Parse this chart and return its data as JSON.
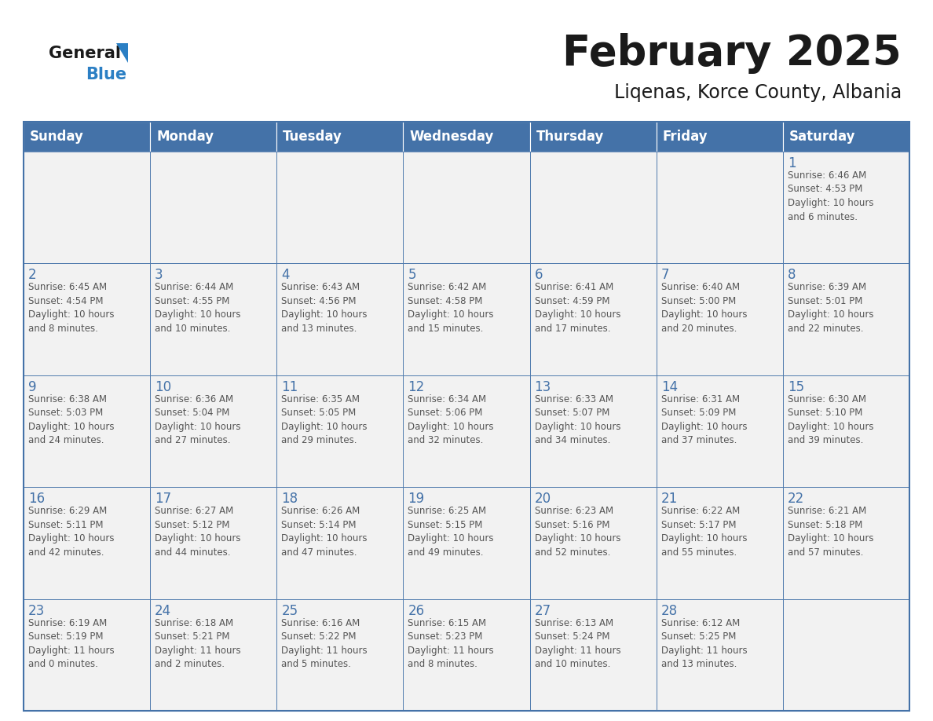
{
  "title": "February 2025",
  "subtitle": "Liqenas, Korce County, Albania",
  "header_color": "#4472a8",
  "header_text_color": "#ffffff",
  "cell_bg_color": "#f2f2f2",
  "border_color": "#4472a8",
  "title_color": "#1a1a1a",
  "subtitle_color": "#1a1a1a",
  "day_number_color": "#4472a8",
  "cell_text_color": "#555555",
  "logo_general_color": "#1a1a1a",
  "logo_blue_color": "#2b7fc4",
  "logo_triangle_color": "#2b7fc4",
  "days_of_week": [
    "Sunday",
    "Monday",
    "Tuesday",
    "Wednesday",
    "Thursday",
    "Friday",
    "Saturday"
  ],
  "weeks": [
    [
      {
        "day": null,
        "info": null
      },
      {
        "day": null,
        "info": null
      },
      {
        "day": null,
        "info": null
      },
      {
        "day": null,
        "info": null
      },
      {
        "day": null,
        "info": null
      },
      {
        "day": null,
        "info": null
      },
      {
        "day": "1",
        "info": "Sunrise: 6:46 AM\nSunset: 4:53 PM\nDaylight: 10 hours\nand 6 minutes."
      }
    ],
    [
      {
        "day": "2",
        "info": "Sunrise: 6:45 AM\nSunset: 4:54 PM\nDaylight: 10 hours\nand 8 minutes."
      },
      {
        "day": "3",
        "info": "Sunrise: 6:44 AM\nSunset: 4:55 PM\nDaylight: 10 hours\nand 10 minutes."
      },
      {
        "day": "4",
        "info": "Sunrise: 6:43 AM\nSunset: 4:56 PM\nDaylight: 10 hours\nand 13 minutes."
      },
      {
        "day": "5",
        "info": "Sunrise: 6:42 AM\nSunset: 4:58 PM\nDaylight: 10 hours\nand 15 minutes."
      },
      {
        "day": "6",
        "info": "Sunrise: 6:41 AM\nSunset: 4:59 PM\nDaylight: 10 hours\nand 17 minutes."
      },
      {
        "day": "7",
        "info": "Sunrise: 6:40 AM\nSunset: 5:00 PM\nDaylight: 10 hours\nand 20 minutes."
      },
      {
        "day": "8",
        "info": "Sunrise: 6:39 AM\nSunset: 5:01 PM\nDaylight: 10 hours\nand 22 minutes."
      }
    ],
    [
      {
        "day": "9",
        "info": "Sunrise: 6:38 AM\nSunset: 5:03 PM\nDaylight: 10 hours\nand 24 minutes."
      },
      {
        "day": "10",
        "info": "Sunrise: 6:36 AM\nSunset: 5:04 PM\nDaylight: 10 hours\nand 27 minutes."
      },
      {
        "day": "11",
        "info": "Sunrise: 6:35 AM\nSunset: 5:05 PM\nDaylight: 10 hours\nand 29 minutes."
      },
      {
        "day": "12",
        "info": "Sunrise: 6:34 AM\nSunset: 5:06 PM\nDaylight: 10 hours\nand 32 minutes."
      },
      {
        "day": "13",
        "info": "Sunrise: 6:33 AM\nSunset: 5:07 PM\nDaylight: 10 hours\nand 34 minutes."
      },
      {
        "day": "14",
        "info": "Sunrise: 6:31 AM\nSunset: 5:09 PM\nDaylight: 10 hours\nand 37 minutes."
      },
      {
        "day": "15",
        "info": "Sunrise: 6:30 AM\nSunset: 5:10 PM\nDaylight: 10 hours\nand 39 minutes."
      }
    ],
    [
      {
        "day": "16",
        "info": "Sunrise: 6:29 AM\nSunset: 5:11 PM\nDaylight: 10 hours\nand 42 minutes."
      },
      {
        "day": "17",
        "info": "Sunrise: 6:27 AM\nSunset: 5:12 PM\nDaylight: 10 hours\nand 44 minutes."
      },
      {
        "day": "18",
        "info": "Sunrise: 6:26 AM\nSunset: 5:14 PM\nDaylight: 10 hours\nand 47 minutes."
      },
      {
        "day": "19",
        "info": "Sunrise: 6:25 AM\nSunset: 5:15 PM\nDaylight: 10 hours\nand 49 minutes."
      },
      {
        "day": "20",
        "info": "Sunrise: 6:23 AM\nSunset: 5:16 PM\nDaylight: 10 hours\nand 52 minutes."
      },
      {
        "day": "21",
        "info": "Sunrise: 6:22 AM\nSunset: 5:17 PM\nDaylight: 10 hours\nand 55 minutes."
      },
      {
        "day": "22",
        "info": "Sunrise: 6:21 AM\nSunset: 5:18 PM\nDaylight: 10 hours\nand 57 minutes."
      }
    ],
    [
      {
        "day": "23",
        "info": "Sunrise: 6:19 AM\nSunset: 5:19 PM\nDaylight: 11 hours\nand 0 minutes."
      },
      {
        "day": "24",
        "info": "Sunrise: 6:18 AM\nSunset: 5:21 PM\nDaylight: 11 hours\nand 2 minutes."
      },
      {
        "day": "25",
        "info": "Sunrise: 6:16 AM\nSunset: 5:22 PM\nDaylight: 11 hours\nand 5 minutes."
      },
      {
        "day": "26",
        "info": "Sunrise: 6:15 AM\nSunset: 5:23 PM\nDaylight: 11 hours\nand 8 minutes."
      },
      {
        "day": "27",
        "info": "Sunrise: 6:13 AM\nSunset: 5:24 PM\nDaylight: 11 hours\nand 10 minutes."
      },
      {
        "day": "28",
        "info": "Sunrise: 6:12 AM\nSunset: 5:25 PM\nDaylight: 11 hours\nand 13 minutes."
      },
      {
        "day": null,
        "info": null
      }
    ]
  ]
}
